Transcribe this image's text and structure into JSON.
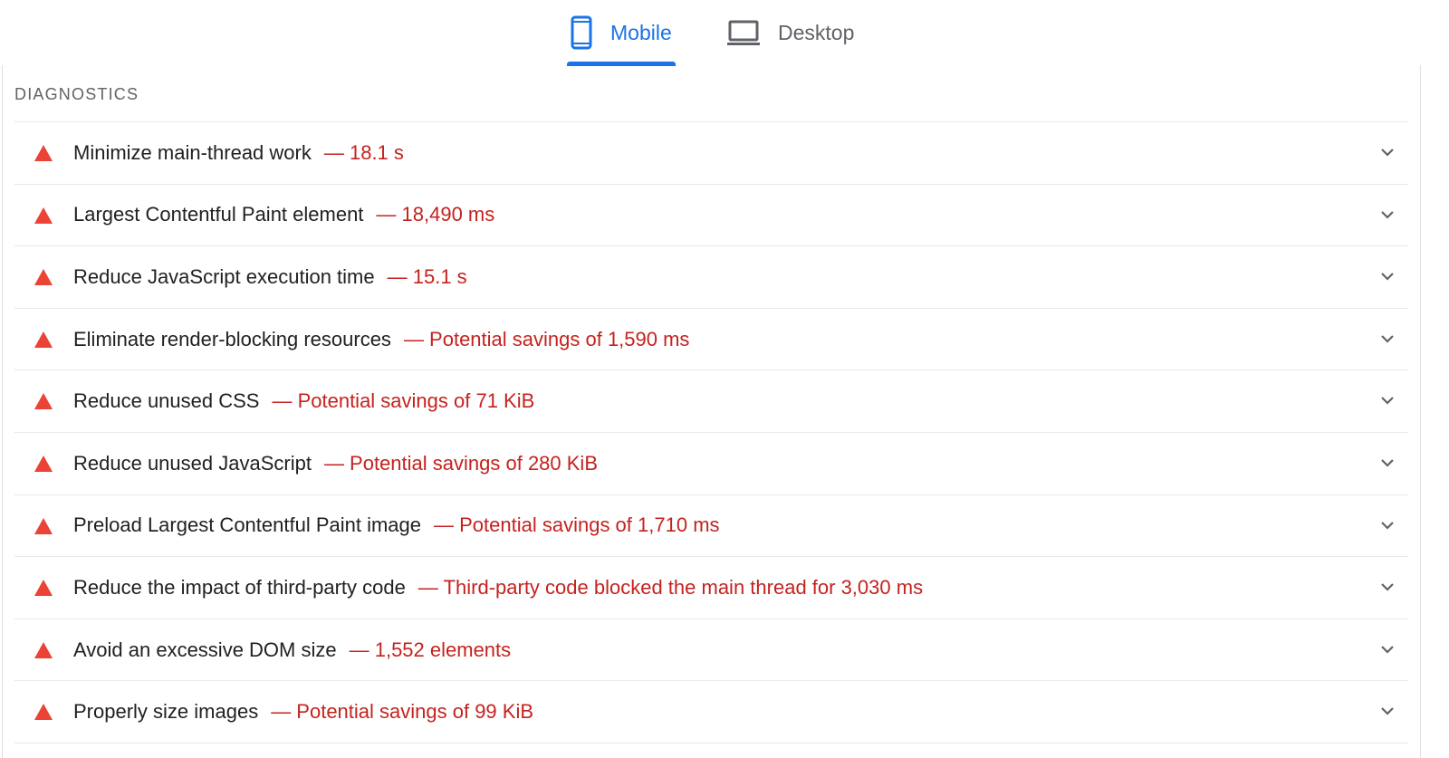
{
  "tabs": [
    {
      "label": "Mobile",
      "icon": "smartphone-icon",
      "active": true
    },
    {
      "label": "Desktop",
      "icon": "laptop-icon",
      "active": false
    }
  ],
  "colors": {
    "accent": "#1a73e8",
    "fail": "#eb4335",
    "value": "#c5221f"
  },
  "section": {
    "title": "DIAGNOSTICS"
  },
  "items": [
    {
      "title": "Minimize main-thread work",
      "value": "— 18.1 s"
    },
    {
      "title": "Largest Contentful Paint element",
      "value": "— 18,490 ms"
    },
    {
      "title": "Reduce JavaScript execution time",
      "value": "— 15.1 s"
    },
    {
      "title": "Eliminate render-blocking resources",
      "value": "— Potential savings of 1,590 ms"
    },
    {
      "title": "Reduce unused CSS",
      "value": "— Potential savings of 71 KiB"
    },
    {
      "title": "Reduce unused JavaScript",
      "value": "— Potential savings of 280 KiB"
    },
    {
      "title": "Preload Largest Contentful Paint image",
      "value": "— Potential savings of 1,710 ms"
    },
    {
      "title": "Reduce the impact of third-party code",
      "value": "— Third-party code blocked the main thread for 3,030 ms"
    },
    {
      "title": "Avoid an excessive DOM size",
      "value": "— 1,552 elements"
    },
    {
      "title": "Properly size images",
      "value": "— Potential savings of 99 KiB"
    }
  ]
}
